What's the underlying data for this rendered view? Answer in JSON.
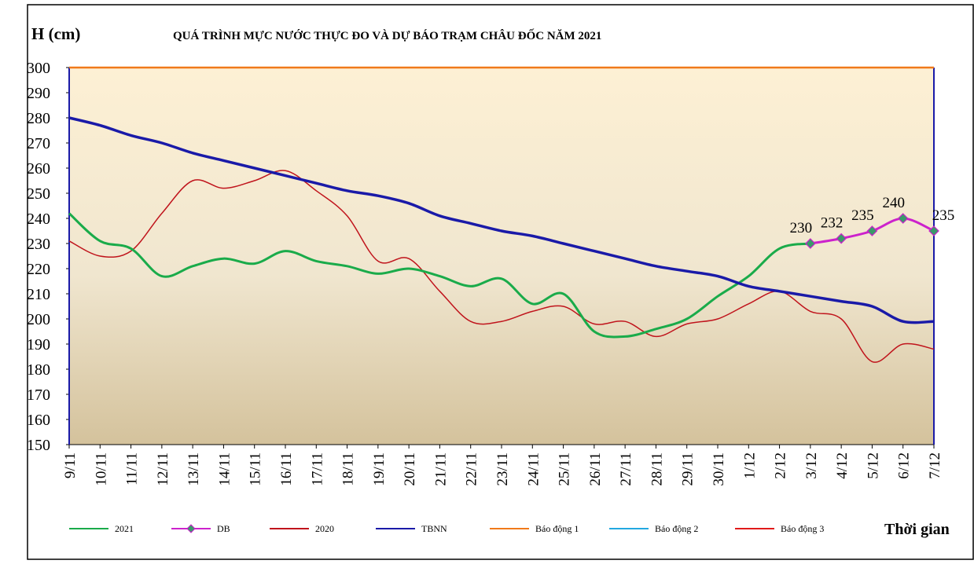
{
  "chart_data": {
    "type": "line",
    "title": "QUÁ TRÌNH MỰC NƯỚC THỰC ĐO VÀ DỰ BÁO TRẠM CHÂU ĐỐC NĂM 2021",
    "y_label": "H (cm)",
    "x_label": "Thời gian",
    "categories": [
      "9/11",
      "10/11",
      "11/11",
      "12/11",
      "13/11",
      "14/11",
      "15/11",
      "16/11",
      "17/11",
      "18/11",
      "19/11",
      "20/11",
      "21/11",
      "22/11",
      "23/11",
      "24/11",
      "25/11",
      "26/11",
      "27/11",
      "28/11",
      "29/11",
      "30/11",
      "1/12",
      "2/12",
      "3/12",
      "4/12",
      "5/12",
      "6/12",
      "7/12"
    ],
    "ylim": [
      150,
      300
    ],
    "yticks": [
      150,
      160,
      170,
      180,
      190,
      200,
      210,
      220,
      230,
      240,
      250,
      260,
      270,
      280,
      290,
      300
    ],
    "series": [
      {
        "name": "2021",
        "color": "#1aab4a",
        "values": [
          242,
          231,
          228,
          217,
          221,
          224,
          222,
          227,
          223,
          221,
          218,
          220,
          217,
          213,
          216,
          206,
          210,
          195,
          193,
          196,
          200,
          209,
          217,
          228,
          230,
          null,
          null,
          null,
          null
        ]
      },
      {
        "name": "DB",
        "color": "#cc22cc",
        "marker_color": "#3a9a6a",
        "values": [
          null,
          null,
          null,
          null,
          null,
          null,
          null,
          null,
          null,
          null,
          null,
          null,
          null,
          null,
          null,
          null,
          null,
          null,
          null,
          null,
          null,
          null,
          null,
          null,
          230,
          232,
          235,
          240,
          235
        ]
      },
      {
        "name": "2020",
        "color": "#c0141c",
        "values": [
          231,
          225,
          227,
          242,
          255,
          252,
          255,
          259,
          251,
          241,
          223,
          224,
          211,
          199,
          199,
          203,
          205,
          198,
          199,
          193,
          198,
          200,
          206,
          211,
          203,
          200,
          183,
          190,
          188
        ]
      },
      {
        "name": "TBNN",
        "color": "#1a1aa8",
        "values": [
          280,
          277,
          273,
          270,
          266,
          263,
          260,
          257,
          254,
          251,
          249,
          246,
          241,
          238,
          235,
          233,
          230,
          227,
          224,
          221,
          219,
          217,
          213,
          211,
          209,
          207,
          205,
          199,
          199
        ]
      },
      {
        "name": "Báo động 1",
        "color": "#f07a1a",
        "values": [
          300,
          300,
          300,
          300,
          300,
          300,
          300,
          300,
          300,
          300,
          300,
          300,
          300,
          300,
          300,
          300,
          300,
          300,
          300,
          300,
          300,
          300,
          300,
          300,
          300,
          300,
          300,
          300,
          300
        ]
      },
      {
        "name": "Báo động 2",
        "color": "#22a8e0",
        "values": [
          null,
          null,
          null,
          null,
          null,
          null,
          null,
          null,
          null,
          null,
          null,
          null,
          null,
          null,
          null,
          null,
          null,
          null,
          null,
          null,
          null,
          null,
          null,
          null,
          null,
          null,
          null,
          null,
          null
        ]
      },
      {
        "name": "Báo động 3",
        "color": "#e01a1a",
        "values": [
          null,
          null,
          null,
          null,
          null,
          null,
          null,
          null,
          null,
          null,
          null,
          null,
          null,
          null,
          null,
          null,
          null,
          null,
          null,
          null,
          null,
          null,
          null,
          null,
          null,
          null,
          null,
          null,
          null
        ]
      }
    ]
  }
}
